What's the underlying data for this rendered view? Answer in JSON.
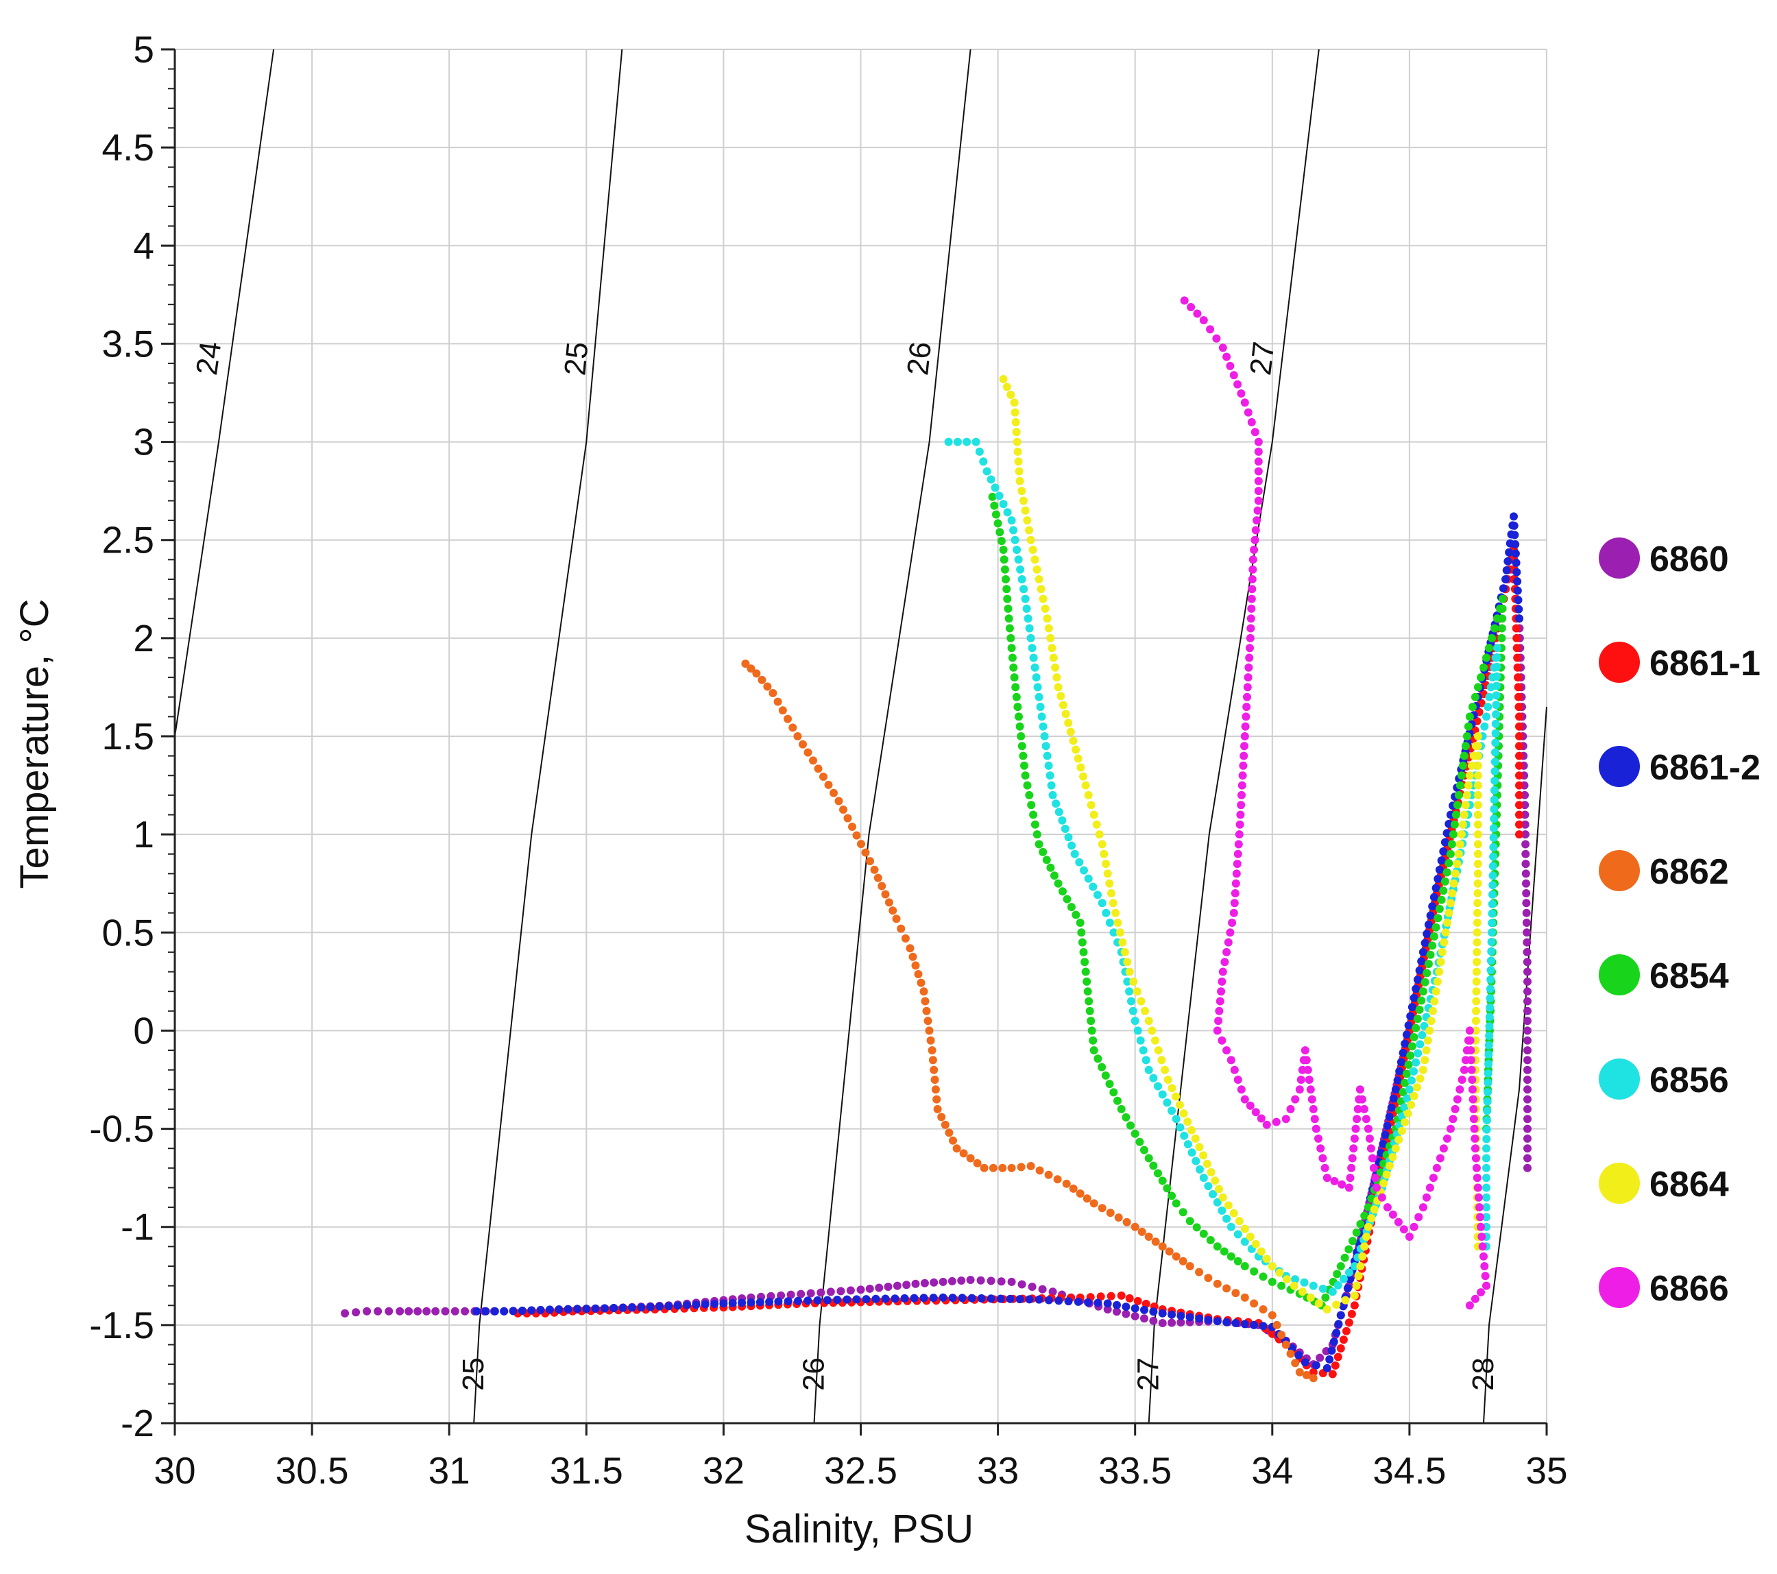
{
  "chart_data": {
    "type": "scatter",
    "xlabel": "Salinity, PSU",
    "ylabel": "Temperature, °C",
    "xlim": [
      30,
      35
    ],
    "ylim": [
      -2,
      5
    ],
    "grid": true,
    "x_ticks": [
      "30",
      "30.5",
      "31",
      "31.5",
      "32",
      "32.5",
      "33",
      "33.5",
      "34",
      "34.5",
      "35"
    ],
    "y_ticks": [
      "-2",
      "-1.5",
      "-1",
      "-0.5",
      "0",
      "0.5",
      "1",
      "1.5",
      "2",
      "2.5",
      "3",
      "3.5",
      "4",
      "4.5",
      "5"
    ],
    "legend_position": "right",
    "isopycnals": [
      {
        "label": "24",
        "points": [
          [
            30.0,
            1.5
          ],
          [
            30.16,
            3.0
          ],
          [
            30.36,
            5.0
          ]
        ]
      },
      {
        "label": "25",
        "points": [
          [
            31.09,
            -2.0
          ],
          [
            31.11,
            -1.5
          ],
          [
            31.3,
            1.0
          ],
          [
            31.5,
            3.0
          ],
          [
            31.63,
            5.0
          ]
        ]
      },
      {
        "label": "26",
        "points": [
          [
            32.33,
            -2.0
          ],
          [
            32.35,
            -1.5
          ],
          [
            32.53,
            1.0
          ],
          [
            32.75,
            3.0
          ],
          [
            32.9,
            5.0
          ]
        ]
      },
      {
        "label": "27",
        "points": [
          [
            33.55,
            -2.0
          ],
          [
            33.57,
            -1.5
          ],
          [
            33.77,
            1.0
          ],
          [
            34.0,
            3.0
          ],
          [
            34.17,
            5.0
          ]
        ]
      },
      {
        "label": "28",
        "points": [
          [
            34.77,
            -2.0
          ],
          [
            34.79,
            -1.5
          ],
          [
            34.9,
            -0.3
          ],
          [
            35.0,
            1.65
          ]
        ]
      }
    ],
    "series": [
      {
        "name": "6860",
        "color": "#9b1fb0",
        "points": [
          [
            30.62,
            -1.44
          ],
          [
            30.7,
            -1.43
          ],
          [
            30.82,
            -1.43
          ],
          [
            30.95,
            -1.43
          ],
          [
            31.2,
            -1.43
          ],
          [
            31.5,
            -1.42
          ],
          [
            31.8,
            -1.4
          ],
          [
            32.1,
            -1.36
          ],
          [
            32.5,
            -1.32
          ],
          [
            32.7,
            -1.29
          ],
          [
            32.9,
            -1.27
          ],
          [
            33.05,
            -1.28
          ],
          [
            33.2,
            -1.33
          ],
          [
            33.4,
            -1.42
          ],
          [
            33.6,
            -1.49
          ],
          [
            33.8,
            -1.48
          ],
          [
            33.95,
            -1.5
          ],
          [
            34.05,
            -1.58
          ],
          [
            34.15,
            -1.7
          ],
          [
            34.22,
            -1.6
          ],
          [
            34.3,
            -1.2
          ],
          [
            34.4,
            -0.6
          ],
          [
            34.5,
            0.0
          ],
          [
            34.6,
            0.7
          ],
          [
            34.7,
            1.3
          ],
          [
            34.8,
            1.9
          ],
          [
            34.87,
            2.4
          ],
          [
            34.9,
            2.1
          ],
          [
            34.92,
            1.2
          ],
          [
            34.93,
            0.3
          ],
          [
            34.93,
            -0.7
          ]
        ]
      },
      {
        "name": "6861-1",
        "color": "#ff1010",
        "points": [
          [
            31.25,
            -1.44
          ],
          [
            31.35,
            -1.44
          ],
          [
            31.45,
            -1.43
          ],
          [
            31.75,
            -1.42
          ],
          [
            32.0,
            -1.41
          ],
          [
            32.3,
            -1.39
          ],
          [
            32.6,
            -1.38
          ],
          [
            33.3,
            -1.36
          ],
          [
            33.45,
            -1.35
          ],
          [
            33.6,
            -1.42
          ],
          [
            33.8,
            -1.47
          ],
          [
            33.95,
            -1.49
          ],
          [
            34.05,
            -1.6
          ],
          [
            34.15,
            -1.74
          ],
          [
            34.22,
            -1.75
          ],
          [
            34.3,
            -1.4
          ],
          [
            34.4,
            -0.7
          ],
          [
            34.5,
            0.0
          ],
          [
            34.6,
            0.7
          ],
          [
            34.7,
            1.3
          ],
          [
            34.8,
            1.9
          ],
          [
            34.88,
            2.45
          ],
          [
            34.9,
            1.6
          ],
          [
            34.9,
            1.0
          ]
        ]
      },
      {
        "name": "6861-2",
        "color": "#1a22d8",
        "points": [
          [
            31.1,
            -1.43
          ],
          [
            31.2,
            -1.43
          ],
          [
            31.4,
            -1.42
          ],
          [
            31.7,
            -1.41
          ],
          [
            32.0,
            -1.39
          ],
          [
            32.2,
            -1.38
          ],
          [
            32.45,
            -1.37
          ],
          [
            32.8,
            -1.36
          ],
          [
            33.15,
            -1.37
          ],
          [
            33.4,
            -1.39
          ],
          [
            33.6,
            -1.44
          ],
          [
            33.8,
            -1.48
          ],
          [
            34.0,
            -1.51
          ],
          [
            34.12,
            -1.69
          ],
          [
            34.2,
            -1.72
          ],
          [
            34.25,
            -1.45
          ],
          [
            34.35,
            -0.9
          ],
          [
            34.45,
            -0.3
          ],
          [
            34.55,
            0.4
          ],
          [
            34.65,
            1.1
          ],
          [
            34.75,
            1.7
          ],
          [
            34.85,
            2.3
          ],
          [
            34.88,
            2.62
          ],
          [
            34.9,
            2.1
          ]
        ]
      },
      {
        "name": "6862",
        "color": "#f06a1c",
        "points": [
          [
            32.08,
            1.87
          ],
          [
            32.12,
            1.82
          ],
          [
            32.18,
            1.72
          ],
          [
            32.27,
            1.5
          ],
          [
            32.42,
            1.17
          ],
          [
            32.55,
            0.82
          ],
          [
            32.63,
            0.57
          ],
          [
            32.68,
            0.42
          ],
          [
            32.73,
            0.2
          ],
          [
            32.76,
            -0.1
          ],
          [
            32.78,
            -0.4
          ],
          [
            32.85,
            -0.6
          ],
          [
            32.95,
            -0.7
          ],
          [
            33.05,
            -0.7
          ],
          [
            33.12,
            -0.69
          ],
          [
            33.25,
            -0.78
          ],
          [
            33.35,
            -0.88
          ],
          [
            33.5,
            -1.0
          ],
          [
            33.6,
            -1.1
          ],
          [
            33.7,
            -1.2
          ],
          [
            33.8,
            -1.29
          ],
          [
            33.9,
            -1.36
          ],
          [
            34.0,
            -1.45
          ],
          [
            34.05,
            -1.6
          ],
          [
            34.1,
            -1.74
          ],
          [
            34.15,
            -1.77
          ]
        ]
      },
      {
        "name": "6854",
        "color": "#18d41a",
        "points": [
          [
            32.98,
            2.72
          ],
          [
            33.02,
            2.45
          ],
          [
            33.04,
            2.1
          ],
          [
            33.06,
            1.8
          ],
          [
            33.1,
            1.3
          ],
          [
            33.15,
            0.95
          ],
          [
            33.22,
            0.75
          ],
          [
            33.3,
            0.55
          ],
          [
            33.32,
            0.3
          ],
          [
            33.35,
            -0.1
          ],
          [
            33.45,
            -0.4
          ],
          [
            33.55,
            -0.65
          ],
          [
            33.65,
            -0.88
          ],
          [
            33.7,
            -0.97
          ],
          [
            33.8,
            -1.1
          ],
          [
            33.9,
            -1.2
          ],
          [
            34.0,
            -1.28
          ],
          [
            34.1,
            -1.34
          ],
          [
            34.18,
            -1.4
          ],
          [
            34.25,
            -1.2
          ],
          [
            34.35,
            -0.9
          ],
          [
            34.45,
            -0.5
          ],
          [
            34.55,
            0.2
          ],
          [
            34.65,
            0.9
          ],
          [
            34.72,
            1.6
          ],
          [
            34.8,
            2.0
          ],
          [
            34.84,
            2.2
          ],
          [
            34.82,
            1.2
          ],
          [
            34.8,
            0.3
          ],
          [
            34.78,
            -0.5
          ]
        ]
      },
      {
        "name": "6856",
        "color": "#1fe2e2",
        "points": [
          [
            32.82,
            3.0
          ],
          [
            32.92,
            3.0
          ],
          [
            32.96,
            2.85
          ],
          [
            33.05,
            2.6
          ],
          [
            33.1,
            2.2
          ],
          [
            33.15,
            1.7
          ],
          [
            33.2,
            1.2
          ],
          [
            33.28,
            0.9
          ],
          [
            33.38,
            0.65
          ],
          [
            33.45,
            0.4
          ],
          [
            33.5,
            0.05
          ],
          [
            33.55,
            -0.2
          ],
          [
            33.65,
            -0.45
          ],
          [
            33.75,
            -0.75
          ],
          [
            33.85,
            -1.0
          ],
          [
            33.95,
            -1.15
          ],
          [
            34.05,
            -1.25
          ],
          [
            34.15,
            -1.3
          ],
          [
            34.22,
            -1.33
          ],
          [
            34.3,
            -1.2
          ],
          [
            34.4,
            -0.8
          ],
          [
            34.5,
            -0.3
          ],
          [
            34.6,
            0.3
          ],
          [
            34.7,
            1.0
          ],
          [
            34.78,
            1.6
          ],
          [
            34.82,
            1.95
          ],
          [
            34.8,
            0.5
          ],
          [
            34.78,
            -0.6
          ],
          [
            34.78,
            -1.1
          ]
        ]
      },
      {
        "name": "6864",
        "color": "#f2ee1a",
        "points": [
          [
            33.02,
            3.32
          ],
          [
            33.06,
            3.2
          ],
          [
            33.08,
            2.8
          ],
          [
            33.12,
            2.5
          ],
          [
            33.18,
            2.1
          ],
          [
            33.22,
            1.75
          ],
          [
            33.32,
            1.25
          ],
          [
            33.38,
            0.95
          ],
          [
            33.42,
            0.65
          ],
          [
            33.48,
            0.3
          ],
          [
            33.55,
            0.05
          ],
          [
            33.62,
            -0.25
          ],
          [
            33.72,
            -0.55
          ],
          [
            33.82,
            -0.85
          ],
          [
            33.92,
            -1.05
          ],
          [
            34.0,
            -1.2
          ],
          [
            34.08,
            -1.3
          ],
          [
            34.2,
            -1.42
          ],
          [
            34.3,
            -1.35
          ],
          [
            34.35,
            -1.0
          ],
          [
            34.45,
            -0.6
          ],
          [
            34.55,
            -0.2
          ],
          [
            34.62,
            0.4
          ],
          [
            34.68,
            0.9
          ],
          [
            34.72,
            1.3
          ],
          [
            34.75,
            1.5
          ],
          [
            34.75,
            0.8
          ],
          [
            34.74,
            -0.2
          ],
          [
            34.75,
            -1.1
          ]
        ]
      },
      {
        "name": "6866",
        "color": "#ee1ee6",
        "points": [
          [
            33.68,
            3.72
          ],
          [
            33.75,
            3.62
          ],
          [
            33.82,
            3.48
          ],
          [
            33.9,
            3.2
          ],
          [
            33.95,
            3.0
          ],
          [
            33.95,
            2.7
          ],
          [
            33.93,
            2.4
          ],
          [
            33.92,
            2.0
          ],
          [
            33.9,
            1.5
          ],
          [
            33.88,
            1.0
          ],
          [
            33.86,
            0.6
          ],
          [
            33.82,
            0.3
          ],
          [
            33.8,
            0.0
          ],
          [
            33.85,
            -0.15
          ],
          [
            33.9,
            -0.35
          ],
          [
            33.98,
            -0.48
          ],
          [
            34.05,
            -0.45
          ],
          [
            34.1,
            -0.3
          ],
          [
            34.12,
            -0.1
          ],
          [
            34.16,
            -0.5
          ],
          [
            34.2,
            -0.75
          ],
          [
            34.28,
            -0.8
          ],
          [
            34.32,
            -0.3
          ],
          [
            34.35,
            -0.5
          ],
          [
            34.38,
            -0.8
          ],
          [
            34.42,
            -0.9
          ],
          [
            34.5,
            -1.05
          ],
          [
            34.55,
            -0.9
          ],
          [
            34.6,
            -0.7
          ],
          [
            34.65,
            -0.5
          ],
          [
            34.7,
            -0.2
          ],
          [
            34.72,
            0.0
          ],
          [
            34.74,
            -0.6
          ],
          [
            34.76,
            -1.0
          ],
          [
            34.78,
            -1.3
          ],
          [
            34.72,
            -1.4
          ]
        ]
      }
    ]
  }
}
